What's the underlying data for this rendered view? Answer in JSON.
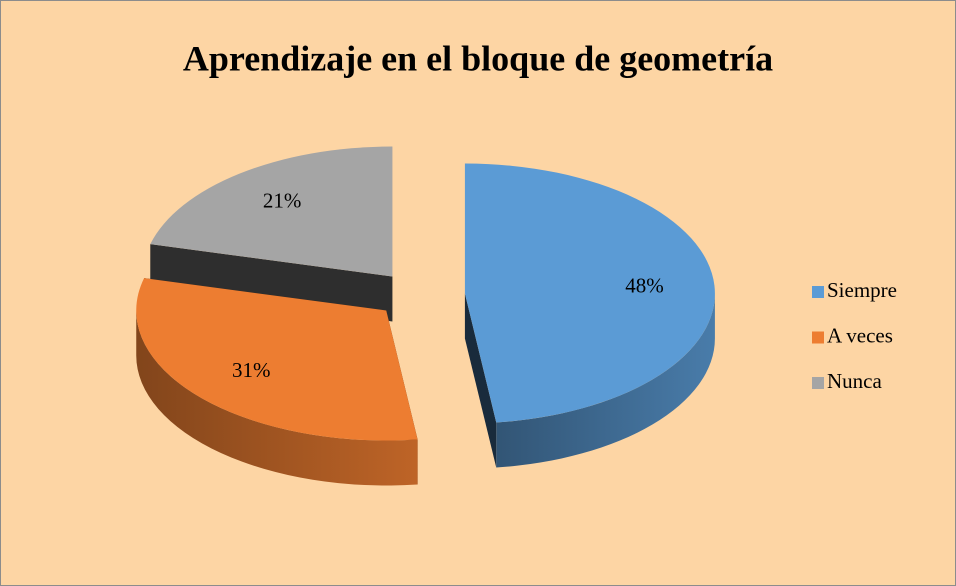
{
  "chart_data": {
    "type": "pie",
    "title": "Aprendizaje en el bloque de geometría",
    "categories": [
      "Siempre",
      "A veces",
      "Nunca"
    ],
    "values": [
      48,
      31,
      21
    ],
    "value_labels": [
      "48%",
      "31%",
      "21%"
    ],
    "colors": [
      "#5b9bd5",
      "#ed7d31",
      "#a5a5a5"
    ],
    "legend": "right"
  }
}
